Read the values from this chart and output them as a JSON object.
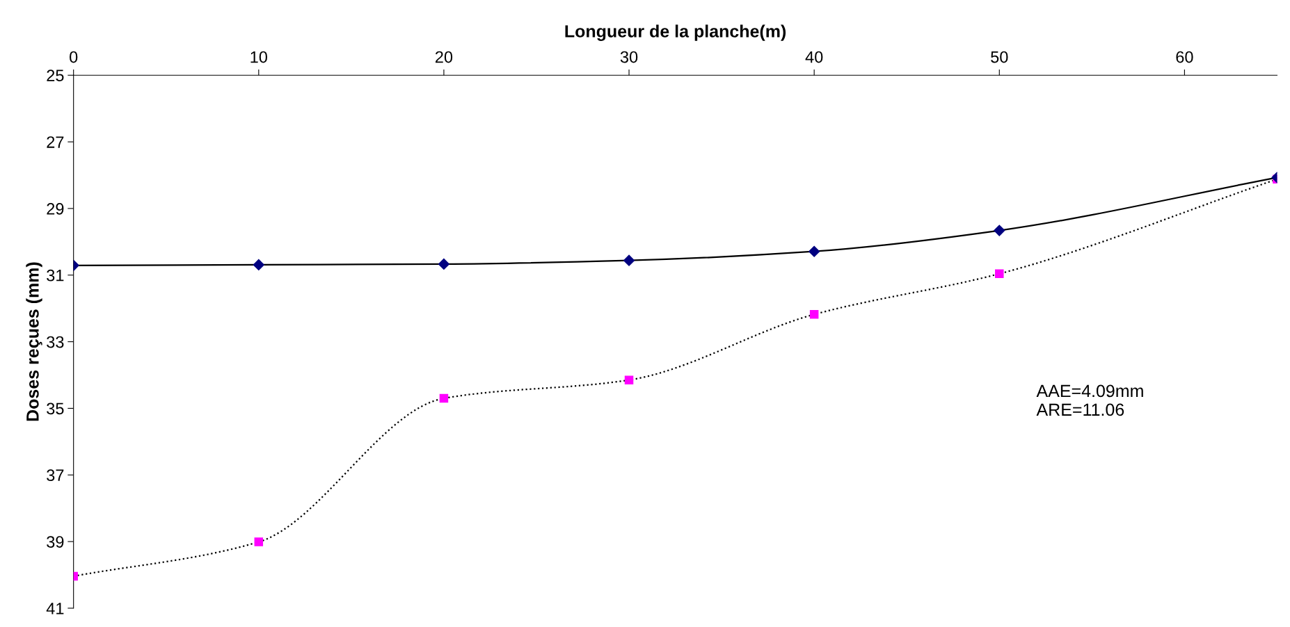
{
  "chart_data": {
    "type": "line",
    "xlabel": "Longueur de la planche(m)",
    "ylabel": "Doses reçues (mm)",
    "x": [
      0,
      10,
      20,
      30,
      40,
      50,
      65
    ],
    "series": [
      {
        "color": "#000080",
        "values": [
          30.71,
          30.69,
          30.67,
          30.56,
          30.29,
          29.66,
          28.07
        ],
        "marker": "diamond",
        "line_style": "solid"
      },
      {
        "color": "#ff00ff",
        "values": [
          40.04,
          39.01,
          34.7,
          34.15,
          32.18,
          30.96,
          28.12
        ],
        "marker": "square",
        "line_style": "dotted"
      }
    ],
    "xlim": [
      0,
      65
    ],
    "xticks": [
      0,
      10,
      20,
      30,
      40,
      50,
      60
    ],
    "ylim": [
      41,
      25
    ],
    "yticks": [
      25,
      27,
      29,
      31,
      33,
      35,
      37,
      39,
      41
    ],
    "grid": false,
    "legend": false,
    "annotations": [
      "AAE=4.09mm\nARE=11.06"
    ]
  }
}
